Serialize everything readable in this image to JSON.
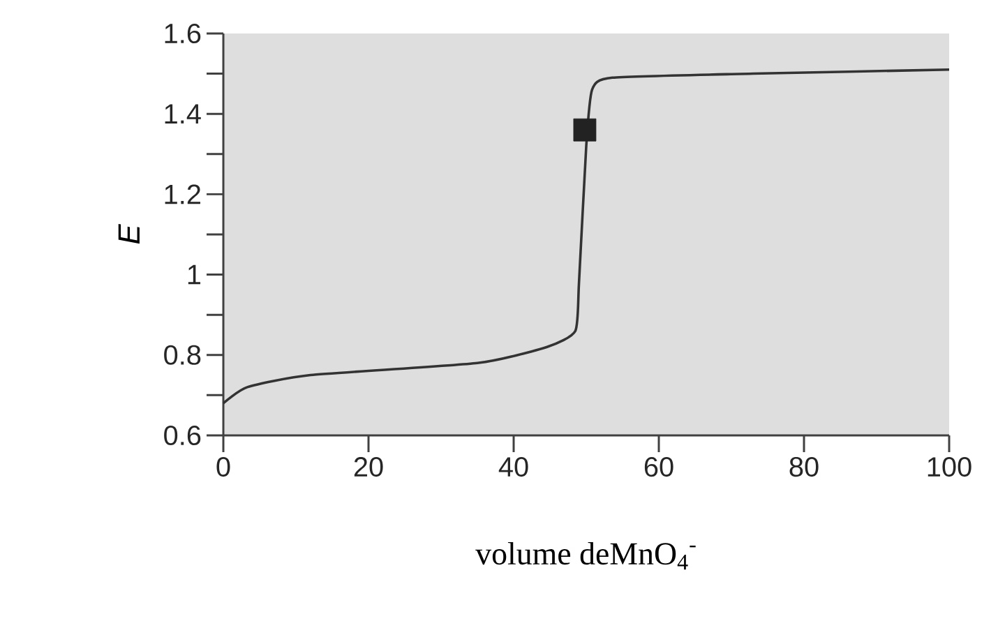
{
  "chart_data": {
    "type": "line",
    "xlabel": "volume deMnO$_{4}$$^{-}$",
    "ylabel": "E",
    "xlim": [
      0,
      100
    ],
    "ylim": [
      0.6,
      1.6
    ],
    "xticks": [
      0,
      20,
      40,
      60,
      80,
      100
    ],
    "yticks": [
      0.6,
      {
        "value": 0.7,
        "label": null
      },
      0.8,
      {
        "value": 0.9,
        "label": null
      },
      1,
      {
        "value": 1.1,
        "label": null
      },
      1.2,
      {
        "value": 1.3,
        "label": null
      },
      1.4,
      {
        "value": 1.5,
        "label": null
      },
      1.6
    ],
    "series": [
      {
        "color": "#333333",
        "marker": "none",
        "x": [
          0,
          3.3,
          12,
          35,
          44.6,
          48.5,
          49,
          50,
          50.8,
          53.6,
          73,
          100
        ],
        "values": [
          0.68,
          0.72,
          0.75,
          0.78,
          0.82,
          0.86,
          0.98,
          1.32,
          1.46,
          1.49,
          1.5,
          1.51
        ]
      },
      {
        "type": "scatter",
        "color": "#222222",
        "marker": "square",
        "x": [
          49.8
        ],
        "values": [
          1.36
        ]
      }
    ]
  }
}
